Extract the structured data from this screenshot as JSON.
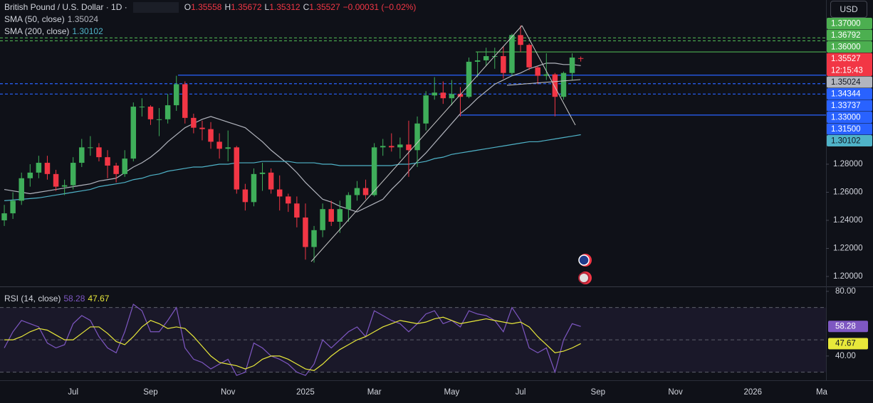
{
  "chart_data": [
    {
      "type": "candlestick",
      "title": "British Pound / U.S. Dollar · 1D ·",
      "ohlc_keys": [
        "O",
        "H",
        "L",
        "C"
      ],
      "change": "−0.00031 (−0.02%)",
      "countdown": "12:15:43",
      "currency": "USD",
      "grid": false,
      "up_color": "#3fae5a",
      "down_color": "#f23645",
      "categories": [
        null,
        null,
        null,
        null,
        null,
        null,
        null,
        null,
        "Jul",
        null,
        null,
        null,
        null,
        null,
        null,
        null,
        null,
        "Sep",
        null,
        null,
        null,
        null,
        null,
        null,
        null,
        null,
        "Nov",
        null,
        null,
        null,
        null,
        null,
        null,
        null,
        null,
        "2025",
        null,
        null,
        null,
        null,
        null,
        null,
        null,
        "Mar",
        null,
        null,
        null,
        null,
        null,
        null,
        null,
        null,
        "May",
        null,
        null,
        null,
        null,
        null,
        null,
        null,
        "Jul",
        null,
        null,
        null,
        null,
        null,
        null,
        null,
        null,
        "Sep",
        null,
        null,
        null,
        null,
        null,
        null,
        null,
        null,
        "Nov",
        null,
        null,
        null,
        null,
        null,
        null,
        null,
        null,
        "2026",
        null,
        null,
        null,
        null,
        null,
        null,
        null,
        "Ma"
      ],
      "open": [
        1.24,
        1.245,
        1.254,
        1.27,
        1.274,
        1.281,
        1.273,
        1.264,
        1.265,
        1.281,
        1.292,
        1.292,
        1.285,
        1.279,
        1.273,
        1.284,
        1.321,
        1.321,
        1.312,
        1.312,
        1.322,
        1.337,
        1.313,
        1.306,
        1.305,
        1.296,
        1.291,
        1.292,
        1.262,
        1.253,
        1.273,
        1.274,
        1.262,
        1.257,
        1.252,
        1.242,
        1.221,
        1.233,
        1.248,
        1.239,
        1.248,
        1.258,
        1.263,
        1.258,
        1.292,
        1.293,
        1.292,
        1.294,
        1.29,
        1.309,
        1.329,
        1.331,
        1.327,
        1.33,
        1.328,
        1.353,
        1.354,
        1.357,
        1.357,
        1.345,
        1.372,
        1.365,
        1.349,
        1.343,
        1.344,
        1.328,
        1.345,
        1.35558,
        null,
        null,
        null,
        null,
        null,
        null,
        null,
        null,
        null,
        null,
        null,
        null,
        null,
        null,
        null,
        null,
        null,
        null,
        null,
        null,
        null,
        null,
        null,
        null,
        null,
        null,
        null,
        null
      ],
      "high": [
        1.251,
        1.26,
        1.274,
        1.28,
        1.286,
        1.286,
        1.276,
        1.269,
        1.285,
        1.298,
        1.3,
        1.295,
        1.29,
        1.281,
        1.29,
        1.324,
        1.327,
        1.322,
        1.32,
        1.33,
        1.343,
        1.339,
        1.316,
        1.311,
        1.31,
        1.302,
        1.304,
        1.293,
        1.266,
        1.277,
        1.281,
        1.277,
        1.272,
        1.259,
        1.257,
        1.252,
        1.236,
        1.252,
        1.254,
        1.254,
        1.26,
        1.268,
        1.269,
        1.295,
        1.298,
        1.302,
        1.299,
        1.311,
        1.314,
        1.332,
        1.342,
        1.339,
        1.34,
        1.335,
        1.356,
        1.36,
        1.363,
        1.363,
        1.364,
        1.373,
        1.3788,
        1.366,
        1.35,
        1.359,
        1.345,
        1.346,
        1.359,
        1.35672,
        null,
        null,
        null,
        null,
        null,
        null,
        null,
        null,
        null,
        null,
        null,
        null,
        null,
        null,
        null,
        null,
        null,
        null,
        null,
        null,
        null,
        null,
        null,
        null,
        null,
        null,
        null,
        null
      ],
      "low": [
        1.236,
        1.241,
        1.251,
        1.264,
        1.27,
        1.269,
        1.261,
        1.258,
        1.262,
        1.278,
        1.286,
        1.282,
        1.27,
        1.267,
        1.271,
        1.282,
        1.314,
        1.308,
        1.3,
        1.309,
        1.318,
        1.309,
        1.302,
        1.297,
        1.291,
        1.284,
        1.282,
        1.259,
        1.247,
        1.25,
        1.261,
        1.259,
        1.247,
        1.246,
        1.235,
        1.212,
        1.2099,
        1.228,
        1.236,
        1.231,
        1.239,
        1.254,
        1.255,
        1.257,
        1.286,
        1.289,
        1.284,
        1.271,
        1.278,
        1.304,
        1.326,
        1.323,
        1.322,
        1.314,
        1.327,
        1.342,
        1.35,
        1.348,
        1.341,
        1.343,
        1.36,
        1.347,
        1.337,
        1.34,
        1.3141,
        1.326,
        1.34,
        1.35312,
        null,
        null,
        null,
        null,
        null,
        null,
        null,
        null,
        null,
        null,
        null,
        null,
        null,
        null,
        null,
        null,
        null,
        null,
        null,
        null,
        null,
        null,
        null,
        null,
        null,
        null,
        null,
        null
      ],
      "close": [
        1.245,
        1.254,
        1.27,
        1.274,
        1.281,
        1.273,
        1.264,
        1.265,
        1.281,
        1.292,
        1.292,
        1.285,
        1.279,
        1.273,
        1.284,
        1.321,
        1.321,
        1.312,
        1.312,
        1.322,
        1.337,
        1.313,
        1.306,
        1.305,
        1.296,
        1.291,
        1.292,
        1.262,
        1.253,
        1.273,
        1.274,
        1.262,
        1.257,
        1.252,
        1.242,
        1.221,
        1.233,
        1.248,
        1.239,
        1.248,
        1.258,
        1.263,
        1.258,
        1.292,
        1.293,
        1.292,
        1.294,
        1.29,
        1.309,
        1.329,
        1.331,
        1.327,
        1.33,
        1.328,
        1.353,
        1.354,
        1.357,
        1.357,
        1.345,
        1.372,
        1.365,
        1.349,
        1.343,
        1.344,
        1.328,
        1.345,
        1.356,
        1.35527,
        null,
        null,
        null,
        null,
        null,
        null,
        null,
        null,
        null,
        null,
        null,
        null,
        null,
        null,
        null,
        null,
        null,
        null,
        null,
        null,
        null,
        null,
        null,
        null,
        null,
        null,
        null,
        null
      ],
      "series": [
        {
          "name": "SMA (50, close)",
          "color": "#b2b5be",
          "values": [
            1.262,
            1.261,
            1.26,
            1.259,
            1.26,
            1.261,
            1.262,
            1.263,
            1.264,
            1.265,
            1.266,
            1.268,
            1.269,
            1.27,
            1.274,
            1.278,
            1.281,
            1.285,
            1.29,
            1.296,
            1.301,
            1.306,
            1.309,
            1.312,
            1.314,
            1.312,
            1.31,
            1.308,
            1.306,
            1.301,
            1.296,
            1.29,
            1.285,
            1.28,
            1.274,
            1.267,
            1.261,
            1.255,
            1.253,
            1.25,
            1.248,
            1.246,
            1.249,
            1.252,
            1.255,
            1.262,
            1.268,
            1.275,
            1.282,
            1.288,
            1.295,
            1.302,
            1.309,
            1.316,
            1.321,
            1.327,
            1.332,
            1.337,
            1.34,
            1.343,
            1.345,
            1.348,
            1.35,
            1.352,
            1.352,
            1.351,
            1.351,
            1.35024,
            null,
            null,
            null,
            null,
            null,
            null,
            null,
            null,
            null,
            null,
            null,
            null,
            null,
            null,
            null,
            null,
            null,
            null,
            null,
            null,
            null,
            null,
            null,
            null,
            null,
            null,
            null,
            null
          ]
        },
        {
          "name": "SMA (200, close)",
          "color": "#4fb3c8",
          "values": [
            1.254,
            1.2545,
            1.255,
            1.2555,
            1.256,
            1.257,
            1.258,
            1.259,
            1.26,
            1.261,
            1.262,
            1.264,
            1.265,
            1.266,
            1.267,
            1.269,
            1.27,
            1.272,
            1.273,
            1.275,
            1.276,
            1.277,
            1.278,
            1.278,
            1.279,
            1.28,
            1.28,
            1.281,
            1.281,
            1.281,
            1.282,
            1.282,
            1.282,
            1.282,
            1.281,
            1.281,
            1.281,
            1.28,
            1.28,
            1.279,
            1.279,
            1.279,
            1.279,
            1.279,
            1.279,
            1.279,
            1.28,
            1.28,
            1.281,
            1.282,
            1.284,
            1.285,
            1.287,
            1.288,
            1.289,
            1.29,
            1.291,
            1.292,
            1.293,
            1.294,
            1.295,
            1.296,
            1.296,
            1.297,
            1.298,
            1.299,
            1.3,
            1.30102,
            null,
            null,
            null,
            null,
            null,
            null,
            null,
            null,
            null,
            null,
            null,
            null,
            null,
            null,
            null,
            null,
            null,
            null,
            null,
            null,
            null,
            null,
            null,
            null,
            null,
            null,
            null,
            null
          ]
        }
      ],
      "levels": [
        {
          "value": 1.37,
          "label": "1.37000",
          "color": "#4caf50",
          "dashed": true
        },
        {
          "value": 1.36792,
          "color": "#4caf50",
          "dashed": true
        },
        {
          "value": 1.36,
          "label": "1.36000",
          "color": "#4caf50",
          "dashed": false
        },
        {
          "value": 1.34344,
          "color": "#2962ff",
          "dashed": false
        },
        {
          "value": 1.33737,
          "color": "#2962ff",
          "dashed": true
        },
        {
          "value": 1.33,
          "label": "1.33000",
          "color": "#2962ff",
          "dashed": true
        },
        {
          "value": 1.315,
          "label": "1.31500",
          "color": "#2962ff",
          "dashed": false
        }
      ],
      "ylim": [
        1.1929,
        1.397
      ],
      "yticks": [
        {
          "value": 1.28,
          "label": "1.28000"
        },
        {
          "value": 1.26,
          "label": "1.26000"
        },
        {
          "value": 1.24,
          "label": "1.24000"
        },
        {
          "value": 1.22,
          "label": "1.22000"
        },
        {
          "value": 1.2,
          "label": "1.20000"
        }
      ]
    },
    {
      "type": "line",
      "title": "RSI (14, close)",
      "series": [
        {
          "color": "#7e57c2",
          "values": [
            45,
            55,
            62,
            60,
            58,
            48,
            45,
            47,
            60,
            65,
            62,
            52,
            45,
            42,
            55,
            72,
            68,
            55,
            55,
            62,
            70,
            45,
            38,
            36,
            32,
            35,
            38,
            28,
            30,
            48,
            45,
            40,
            38,
            35,
            30,
            28,
            35,
            50,
            45,
            50,
            55,
            58,
            52,
            68,
            65,
            62,
            60,
            55,
            60,
            66,
            68,
            60,
            62,
            58,
            68,
            66,
            65,
            62,
            55,
            70,
            62,
            45,
            42,
            45,
            30,
            50,
            60,
            58.28,
            null,
            null,
            null,
            null,
            null,
            null,
            null,
            null,
            null,
            null,
            null,
            null,
            null,
            null,
            null,
            null,
            null,
            null,
            null,
            null,
            null,
            null,
            null,
            null,
            null,
            null,
            null,
            null
          ]
        },
        {
          "color": "#e8e83a",
          "values": [
            50,
            50,
            52,
            55,
            57,
            56,
            53,
            50,
            50,
            54,
            58,
            58,
            54,
            49,
            47,
            52,
            58,
            62,
            60,
            57,
            58,
            57,
            52,
            46,
            40,
            36,
            35,
            34,
            32,
            34,
            38,
            40,
            40,
            38,
            35,
            32,
            31,
            35,
            40,
            44,
            47,
            50,
            52,
            55,
            58,
            60,
            62,
            61,
            60,
            61,
            63,
            64,
            62,
            60,
            61,
            62,
            63,
            62,
            61,
            60,
            61,
            58,
            52,
            47,
            42,
            43,
            45,
            47.67,
            null,
            null,
            null,
            null,
            null,
            null,
            null,
            null,
            null,
            null,
            null,
            null,
            null,
            null,
            null,
            null,
            null,
            null,
            null,
            null,
            null,
            null,
            null,
            null,
            null,
            null,
            null,
            null
          ]
        }
      ],
      "bands": [
        70,
        50,
        30
      ],
      "band_color": "#7e57c2",
      "ylim": [
        25,
        82.6
      ],
      "yticks": [
        {
          "value": 80,
          "label": "80.00"
        },
        {
          "value": 40,
          "label": "40.00"
        }
      ]
    }
  ]
}
